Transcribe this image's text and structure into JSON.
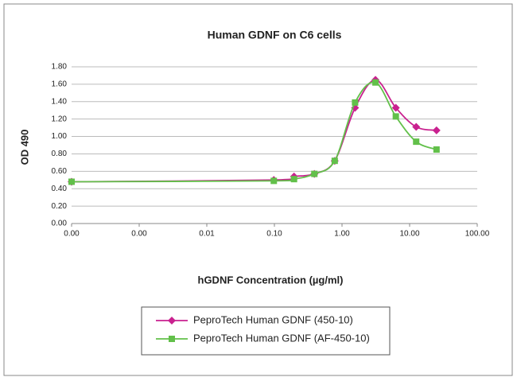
{
  "chart_data": {
    "type": "line",
    "title": "Human GDNF on C6 cells",
    "x_label": "hGDNF Concentration (µg/ml)",
    "y_label": "OD 490",
    "x_log": true,
    "grid": true,
    "xlim": [
      0.0001,
      100
    ],
    "xticks": [
      {
        "value": 0.0001,
        "label": "0.00"
      },
      {
        "value": 0.001,
        "label": "0.00"
      },
      {
        "value": 0.01,
        "label": "0.01"
      },
      {
        "value": 0.1,
        "label": "0.10"
      },
      {
        "value": 1,
        "label": "1.00"
      },
      {
        "value": 10,
        "label": "10.00"
      },
      {
        "value": 100,
        "label": "100.00"
      }
    ],
    "ylim": [
      0,
      1.8
    ],
    "yticks": [
      {
        "value": 0,
        "label": "0.00"
      },
      {
        "value": 0.2,
        "label": "0.20"
      },
      {
        "value": 0.4,
        "label": "0.40"
      },
      {
        "value": 0.6,
        "label": "0.60"
      },
      {
        "value": 0.8,
        "label": "0.80"
      },
      {
        "value": 1,
        "label": "1.00"
      },
      {
        "value": 1.2,
        "label": "1.20"
      },
      {
        "value": 1.4,
        "label": "1.40"
      },
      {
        "value": 1.6,
        "label": "1.60"
      },
      {
        "value": 1.8,
        "label": "1.80"
      }
    ],
    "x": [
      0.0001,
      0.098,
      0.195,
      0.39,
      0.78,
      1.56,
      3.125,
      6.25,
      12.5,
      25
    ],
    "series": [
      {
        "name": "PeproTech Human GDNF (450-10)",
        "color": "#c9218f",
        "marker": "diamond",
        "values": [
          0.48,
          0.5,
          0.54,
          0.57,
          0.72,
          1.33,
          1.65,
          1.33,
          1.11,
          1.07
        ]
      },
      {
        "name": "PeproTech Human GDNF (AF-450-10)",
        "color": "#62c04a",
        "marker": "square",
        "values": [
          0.48,
          0.49,
          0.51,
          0.57,
          0.72,
          1.39,
          1.62,
          1.23,
          0.94,
          0.85
        ]
      }
    ]
  }
}
